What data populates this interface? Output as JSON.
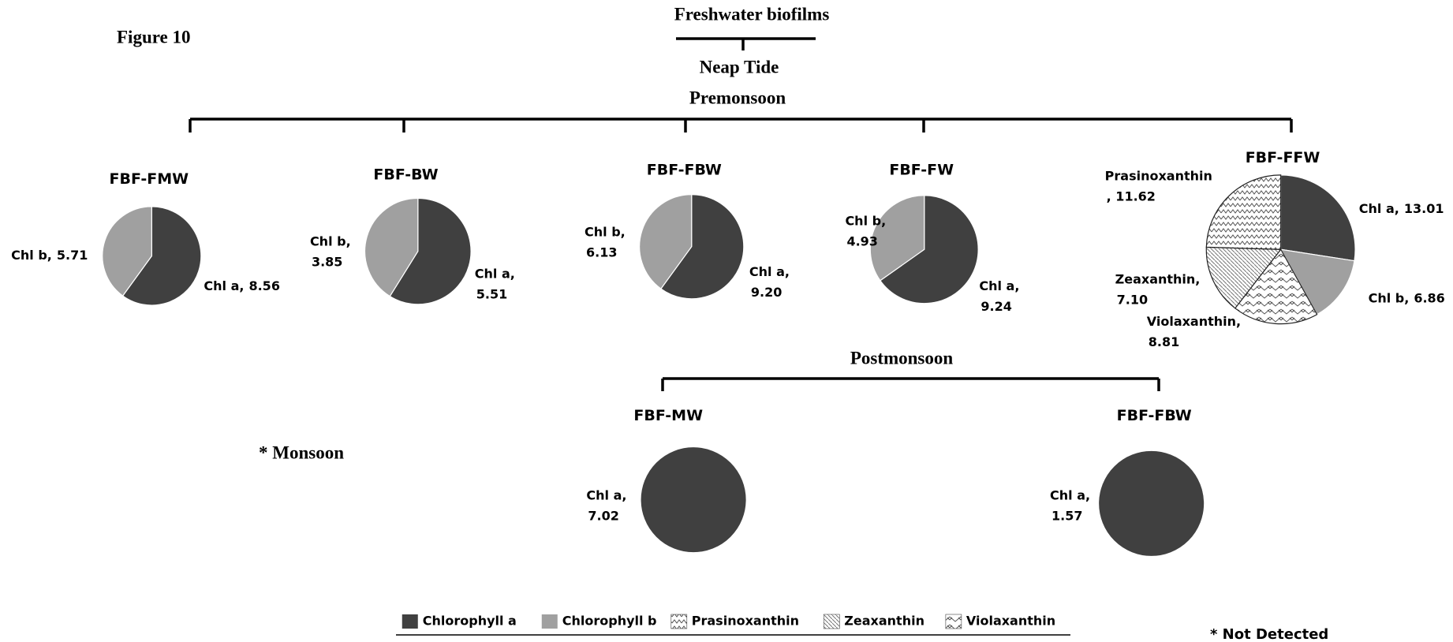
{
  "figure_label": "Figure 10",
  "title": "Freshwater biofilms",
  "tide": "Neap Tide",
  "premonsoon": "Premonsoon",
  "postmonsoon": "Postmonsoon",
  "monsoon": "* Monsoon",
  "not_detected": "* Not Detected",
  "legend": [
    {
      "name": "Chlorophyll a",
      "fill": "#404040"
    },
    {
      "name": "Chlorophyll b",
      "fill": "#a0a0a0"
    },
    {
      "name": "Prasinoxanthin",
      "fill": "zigzag"
    },
    {
      "name": "Zeaxanthin",
      "fill": "diagonal"
    },
    {
      "name": "Violaxanthin",
      "fill": "chevron"
    }
  ],
  "chart_data": [
    {
      "type": "pie",
      "title": "FBF-FMW",
      "categories": [
        "Chl a,",
        "Chl b,"
      ],
      "values": [
        8.56,
        5.71
      ],
      "value_labels": [
        "8.56",
        "5.71"
      ],
      "fills": [
        "#404040",
        "#a0a0a0"
      ]
    },
    {
      "type": "pie",
      "title": "FBF-BW",
      "categories": [
        "Chl a,",
        "Chl b,"
      ],
      "values": [
        5.51,
        3.85
      ],
      "value_labels": [
        "5.51",
        "3.85"
      ],
      "fills": [
        "#404040",
        "#a0a0a0"
      ]
    },
    {
      "type": "pie",
      "title": "FBF-FBW",
      "categories": [
        "Chl a,",
        "Chl b,"
      ],
      "values": [
        9.2,
        6.13
      ],
      "value_labels": [
        "9.20",
        "6.13"
      ],
      "fills": [
        "#404040",
        "#a0a0a0"
      ]
    },
    {
      "type": "pie",
      "title": "FBF-FW",
      "categories": [
        "Chl a,",
        "Chl b,"
      ],
      "values": [
        9.24,
        4.93
      ],
      "value_labels": [
        "9.24",
        "4.93"
      ],
      "fills": [
        "#404040",
        "#a0a0a0"
      ]
    },
    {
      "type": "pie",
      "title": "FBF-FFW",
      "categories": [
        "Chl a,",
        "Chl b,",
        "Violaxanthin,",
        "Zeaxanthin,",
        "Prasinoxanthin"
      ],
      "values": [
        13.01,
        6.86,
        8.81,
        7.1,
        11.62
      ],
      "value_labels": [
        "13.01",
        "6.86",
        "8.81",
        "7.10",
        ", 11.62"
      ],
      "fills": [
        "#404040",
        "#a0a0a0",
        "chevron",
        "diagonal",
        "zigzag"
      ]
    },
    {
      "type": "pie",
      "title": "FBF-MW",
      "categories": [
        "Chl a,"
      ],
      "values": [
        7.02
      ],
      "value_labels": [
        "7.02"
      ],
      "fills": [
        "#404040"
      ]
    },
    {
      "type": "pie",
      "title": "FBF-FBW",
      "categories": [
        "Chl a,"
      ],
      "values": [
        1.57
      ],
      "value_labels": [
        "1.57"
      ],
      "fills": [
        "#404040"
      ]
    }
  ]
}
